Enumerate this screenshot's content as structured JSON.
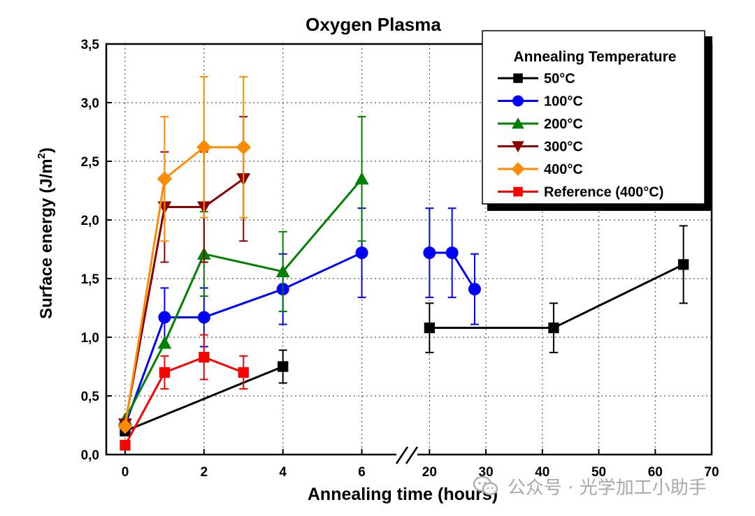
{
  "chart_data": {
    "type": "line",
    "title": "Oxygen Plasma",
    "xlabel": "Annealing time (hours)",
    "ylabel": "Surface energy (J/m",
    "ylabel_sup": "2",
    "ylim": [
      0,
      3.5
    ],
    "x_segments": [
      {
        "range": [
          0,
          7
        ],
        "ticks": [
          0,
          2,
          4,
          6
        ]
      },
      {
        "range": [
          15,
          70
        ],
        "ticks": [
          20,
          30,
          40,
          50,
          60,
          70
        ]
      }
    ],
    "y_ticks": [
      0,
      0.5,
      1.0,
      1.5,
      2.0,
      2.5,
      3.0,
      3.5
    ],
    "y_tick_labels": [
      "0,0",
      "0,5",
      "1,0",
      "1,5",
      "2,0",
      "2,5",
      "3,0",
      "3,5"
    ],
    "x_tick_labels": [
      "0",
      "2",
      "4",
      "6",
      "20",
      "30",
      "40",
      "50",
      "60",
      "70"
    ],
    "grid": true,
    "legend_title": "Annealing Temperature",
    "legend_position": "top-right",
    "series": [
      {
        "name": "50°C",
        "color": "#000000",
        "marker": "square",
        "x": [
          0,
          4,
          20,
          42,
          65
        ],
        "y": [
          0.2,
          0.75,
          1.08,
          1.08,
          1.62
        ],
        "err": [
          0,
          0.14,
          0.21,
          0.21,
          0.33
        ]
      },
      {
        "name": "100°C",
        "color": "#0000ff",
        "marker": "circle",
        "x": [
          0,
          1,
          2,
          4,
          6,
          20,
          24,
          28
        ],
        "y": [
          0.25,
          1.17,
          1.17,
          1.41,
          1.72,
          1.72,
          1.72,
          1.41
        ],
        "err": [
          0,
          0.25,
          0.25,
          0.3,
          0.38,
          0.38,
          0.38,
          0.3
        ]
      },
      {
        "name": "200°C",
        "color": "#008000",
        "marker": "triangle-up",
        "x": [
          0,
          1,
          2,
          4,
          6
        ],
        "y": [
          0.3,
          0.95,
          1.71,
          1.56,
          2.35
        ],
        "err": [
          0,
          0,
          0.36,
          0.34,
          0.53
        ]
      },
      {
        "name": "300°C",
        "color": "#8b0000",
        "marker": "triangle-down",
        "x": [
          0,
          1,
          2,
          3
        ],
        "y": [
          0.26,
          2.11,
          2.11,
          2.35
        ],
        "err": [
          0,
          0.47,
          0.47,
          0.53
        ]
      },
      {
        "name": "400°C",
        "color": "#ff8c00",
        "marker": "diamond",
        "x": [
          0,
          1,
          2,
          3
        ],
        "y": [
          0.24,
          2.35,
          2.62,
          2.62
        ],
        "err": [
          0,
          0.53,
          0.6,
          0.6
        ]
      },
      {
        "name": "Reference (400°C)",
        "color": "#ff0000",
        "marker": "square",
        "x": [
          0,
          1,
          2,
          3
        ],
        "y": [
          0.08,
          0.7,
          0.83,
          0.7
        ],
        "err": [
          0,
          0.14,
          0.19,
          0.14
        ]
      }
    ]
  },
  "watermark": {
    "text": "公众号 · 光学加工小助手",
    "icon": "wechat-icon"
  }
}
